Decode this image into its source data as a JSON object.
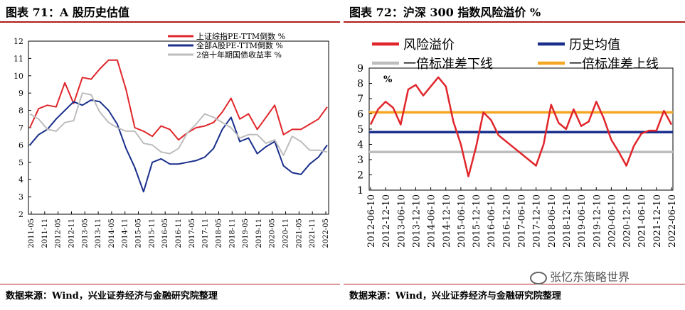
{
  "source_text": "数据来源：Wind，兴业证券经济与金融研究院整理",
  "watermark": "张忆东策略世界",
  "chart_data": [
    {
      "type": "line",
      "title": "图表 71：A 股历史估值",
      "ylim": [
        2,
        12
      ],
      "yticks": [
        "2",
        "3",
        "4",
        "5",
        "6",
        "7",
        "8",
        "9",
        "10",
        "11",
        "12"
      ],
      "xticks": [
        "2011-05",
        "2011-11",
        "2012-05",
        "2012-11",
        "2013-05",
        "2013-11",
        "2014-05",
        "2014-11",
        "2015-05",
        "2015-11",
        "2016-05",
        "2016-11",
        "2017-05",
        "2017-11",
        "2018-05",
        "2018-11",
        "2019-05",
        "2019-11",
        "2020-05",
        "2020-11",
        "2021-05",
        "2021-11",
        "2022-05"
      ],
      "legend_position": "top-right",
      "series": [
        {
          "name": "上证综指PE-TTM倒数 %",
          "color": "#e0262b",
          "values": [
            7.0,
            8.1,
            8.3,
            8.2,
            9.6,
            8.4,
            9.9,
            9.8,
            10.4,
            10.9,
            10.9,
            9.2,
            7.0,
            6.8,
            6.5,
            7.1,
            6.9,
            6.3,
            6.7,
            7.0,
            7.1,
            7.3,
            7.9,
            8.7,
            7.5,
            7.8,
            6.9,
            7.6,
            8.3,
            6.6,
            6.9,
            6.9,
            7.2,
            7.5,
            8.2
          ]
        },
        {
          "name": "全部A股PE-TTM倒数 %",
          "color": "#1a2f8c",
          "values": [
            6.0,
            6.6,
            6.9,
            7.5,
            8.0,
            8.5,
            8.3,
            8.6,
            8.5,
            8.0,
            7.2,
            5.8,
            4.7,
            3.3,
            5.0,
            5.2,
            4.9,
            4.9,
            5.0,
            5.1,
            5.3,
            5.8,
            6.9,
            7.6,
            6.2,
            6.4,
            5.5,
            5.9,
            6.2,
            4.8,
            4.4,
            4.3,
            4.9,
            5.3,
            6.0
          ]
        },
        {
          "name": "2倍十年期国债收益率 %",
          "color": "#bdbdbd",
          "values": [
            7.8,
            7.5,
            6.9,
            6.8,
            7.3,
            7.4,
            9.0,
            8.9,
            7.9,
            7.3,
            7.0,
            6.8,
            6.8,
            6.1,
            6.0,
            5.6,
            5.5,
            5.8,
            6.7,
            7.2,
            7.8,
            7.6,
            7.3,
            7.0,
            6.4,
            6.6,
            6.6,
            6.1,
            6.3,
            5.4,
            6.5,
            6.2,
            5.7,
            5.7,
            5.6
          ]
        }
      ]
    },
    {
      "type": "line",
      "title": "图表 72：沪深 300 指数风险溢价 %",
      "ylabel": "%",
      "ylim": [
        1,
        9
      ],
      "yticks": [
        "1",
        "2",
        "3",
        "4",
        "5",
        "6",
        "7",
        "8",
        "9"
      ],
      "xticks": [
        "2012-06-10",
        "2012-12-10",
        "2013-06-10",
        "2013-12-10",
        "2014-06-10",
        "2014-12-10",
        "2015-06-10",
        "2015-12-10",
        "2016-06-10",
        "2016-12-10",
        "2017-06-10",
        "2017-12-10",
        "2018-06-10",
        "2018-12-10",
        "2019-06-10",
        "2019-12-10",
        "2020-06-10",
        "2020-12-10",
        "2021-06-10",
        "2021-12-10",
        "2022-06-10"
      ],
      "legend_position": "top",
      "reference_lines": {
        "historical_mean": 4.8,
        "minus_one_std": 3.5,
        "plus_one_std": 6.1
      },
      "series": [
        {
          "name": "风险溢价",
          "color": "#e0262b",
          "values": [
            5.3,
            6.3,
            6.8,
            6.4,
            5.3,
            7.6,
            7.9,
            7.2,
            7.8,
            8.4,
            7.8,
            5.5,
            4.0,
            1.9,
            3.8,
            6.1,
            5.6,
            4.6,
            4.2,
            3.8,
            3.4,
            3.0,
            2.6,
            4.0,
            6.6,
            5.4,
            5.0,
            6.3,
            5.2,
            5.5,
            6.8,
            5.7,
            4.3,
            3.5,
            2.6,
            3.9,
            4.7,
            4.9,
            4.9,
            6.2,
            5.3
          ]
        },
        {
          "name": "历史均值",
          "color": "#1a2f8c",
          "values": []
        },
        {
          "name": "一倍标准差下线",
          "color": "#bdbdbd",
          "values": []
        },
        {
          "name": "一倍标准差上线",
          "color": "#f5a623",
          "values": []
        }
      ]
    }
  ]
}
